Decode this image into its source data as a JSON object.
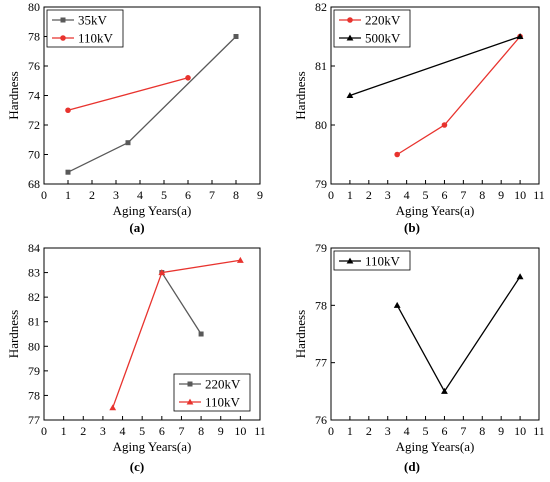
{
  "chart_data": [
    {
      "type": "line",
      "caption": "(a)",
      "xlabel": "Aging Years(a)",
      "ylabel": "Hardness",
      "xlim": [
        0,
        9
      ],
      "ylim": [
        68,
        80
      ],
      "xticks": [
        "0",
        "1",
        "2",
        "3",
        "4",
        "5",
        "6",
        "7",
        "8",
        "9"
      ],
      "yticks": [
        "68",
        "70",
        "72",
        "74",
        "76",
        "78",
        "80"
      ],
      "legend_position": "top-left",
      "series": [
        {
          "name": "35kV",
          "color": "#595959",
          "marker": "square",
          "x": [
            1,
            3.5,
            8
          ],
          "y": [
            68.8,
            70.8,
            78
          ]
        },
        {
          "name": "110kV",
          "color": "#e8332e",
          "marker": "circle",
          "x": [
            1,
            6
          ],
          "y": [
            73,
            75.2
          ]
        }
      ]
    },
    {
      "type": "line",
      "caption": "(b)",
      "xlabel": "Aging Years(a)",
      "ylabel": "Hardness",
      "xlim": [
        0,
        11
      ],
      "ylim": [
        79,
        82
      ],
      "xticks": [
        "0",
        "1",
        "2",
        "3",
        "4",
        "5",
        "6",
        "7",
        "8",
        "9",
        "10",
        "11"
      ],
      "yticks": [
        "79",
        "80",
        "81",
        "82"
      ],
      "legend_position": "top-left",
      "series": [
        {
          "name": "220kV",
          "color": "#e8332e",
          "marker": "circle",
          "x": [
            3.5,
            6,
            10
          ],
          "y": [
            79.5,
            80,
            81.5
          ]
        },
        {
          "name": "500kV",
          "color": "#000000",
          "marker": "triangle",
          "x": [
            1,
            10
          ],
          "y": [
            80.5,
            81.5
          ]
        }
      ]
    },
    {
      "type": "line",
      "caption": "(c)",
      "xlabel": "Aging Years(a)",
      "ylabel": "Hardness",
      "xlim": [
        0,
        11
      ],
      "ylim": [
        77,
        84
      ],
      "xticks": [
        "0",
        "1",
        "2",
        "3",
        "4",
        "5",
        "6",
        "7",
        "8",
        "9",
        "10",
        "11"
      ],
      "yticks": [
        "77",
        "78",
        "79",
        "80",
        "81",
        "82",
        "83",
        "84"
      ],
      "legend_position": "bottom-right",
      "series": [
        {
          "name": "220kV",
          "color": "#595959",
          "marker": "square",
          "x": [
            6,
            8
          ],
          "y": [
            83,
            80.5
          ]
        },
        {
          "name": "110kV",
          "color": "#e8332e",
          "marker": "triangle",
          "x": [
            3.5,
            6,
            10
          ],
          "y": [
            77.5,
            83,
            83.5
          ]
        }
      ]
    },
    {
      "type": "line",
      "caption": "(d)",
      "xlabel": "Aging Years(a)",
      "ylabel": "Hardness",
      "xlim": [
        0,
        11
      ],
      "ylim": [
        76,
        79
      ],
      "xticks": [
        "0",
        "1",
        "2",
        "3",
        "4",
        "5",
        "6",
        "7",
        "8",
        "9",
        "10",
        "11"
      ],
      "yticks": [
        "76",
        "77",
        "78",
        "79"
      ],
      "legend_position": "top-left",
      "series": [
        {
          "name": "110kV",
          "color": "#000000",
          "marker": "triangle",
          "x": [
            3.5,
            6,
            10
          ],
          "y": [
            78,
            76.5,
            78.5
          ]
        }
      ]
    }
  ]
}
